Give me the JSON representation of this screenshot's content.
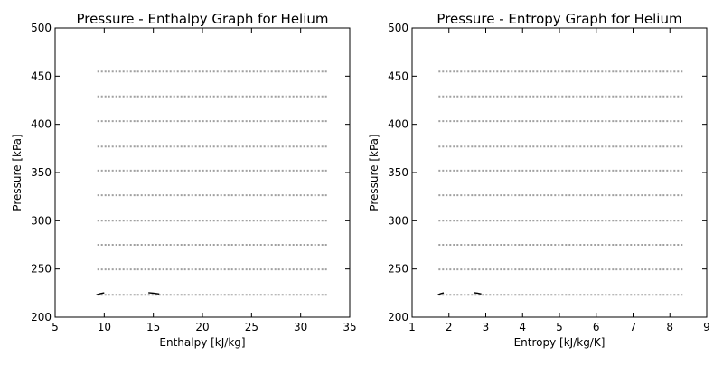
{
  "colors": {
    "frame": "#000000",
    "isobar": "#a0a0a0",
    "curve": "#000000",
    "background": "#ffffff"
  },
  "chart_data": [
    {
      "type": "line",
      "title": "Pressure - Enthalpy Graph for Helium",
      "xlabel": "Enthalpy [kJ/kg]",
      "ylabel": "Pressure [kPa]",
      "xlim": [
        5,
        35
      ],
      "ylim": [
        200,
        500
      ],
      "xticks": [
        5,
        10,
        15,
        20,
        25,
        30,
        35
      ],
      "yticks": [
        200,
        250,
        300,
        350,
        400,
        450,
        500
      ],
      "grid": false,
      "isobars": {
        "style": "dotted",
        "x_range": [
          9.3,
          32.8
        ],
        "pressures": [
          223.2,
          249.6,
          275.0,
          300.0,
          326.5,
          352.0,
          377.0,
          403.3,
          429.0,
          454.7
        ]
      },
      "series": [
        {
          "style": "solid",
          "x": [
            9.2,
            9.6,
            10.0
          ],
          "y": [
            223.2,
            224.5,
            225.2
          ]
        },
        {
          "style": "solid",
          "x": [
            14.5,
            15.0,
            15.6
          ],
          "y": [
            225.4,
            224.9,
            224.1
          ]
        }
      ]
    },
    {
      "type": "line",
      "title": "Pressure - Entropy Graph for Helium",
      "xlabel": "Entropy [kJ/kg/K]",
      "ylabel": "Pressure [kPa]",
      "xlim": [
        1,
        9
      ],
      "ylim": [
        200,
        500
      ],
      "xticks": [
        1,
        2,
        3,
        4,
        5,
        6,
        7,
        8,
        9
      ],
      "yticks": [
        200,
        250,
        300,
        350,
        400,
        450,
        500
      ],
      "grid": false,
      "isobars": {
        "style": "dotted",
        "x_range": [
          1.72,
          8.36
        ],
        "pressures": [
          223.2,
          249.6,
          275.0,
          300.0,
          326.5,
          352.0,
          377.0,
          403.3,
          429.0,
          454.7
        ]
      },
      "series": [
        {
          "style": "solid",
          "x": [
            1.7,
            1.78,
            1.86
          ],
          "y": [
            223.2,
            224.5,
            225.2
          ]
        },
        {
          "style": "solid",
          "x": [
            2.68,
            2.78,
            2.88
          ],
          "y": [
            225.4,
            224.9,
            224.1
          ]
        }
      ]
    }
  ]
}
